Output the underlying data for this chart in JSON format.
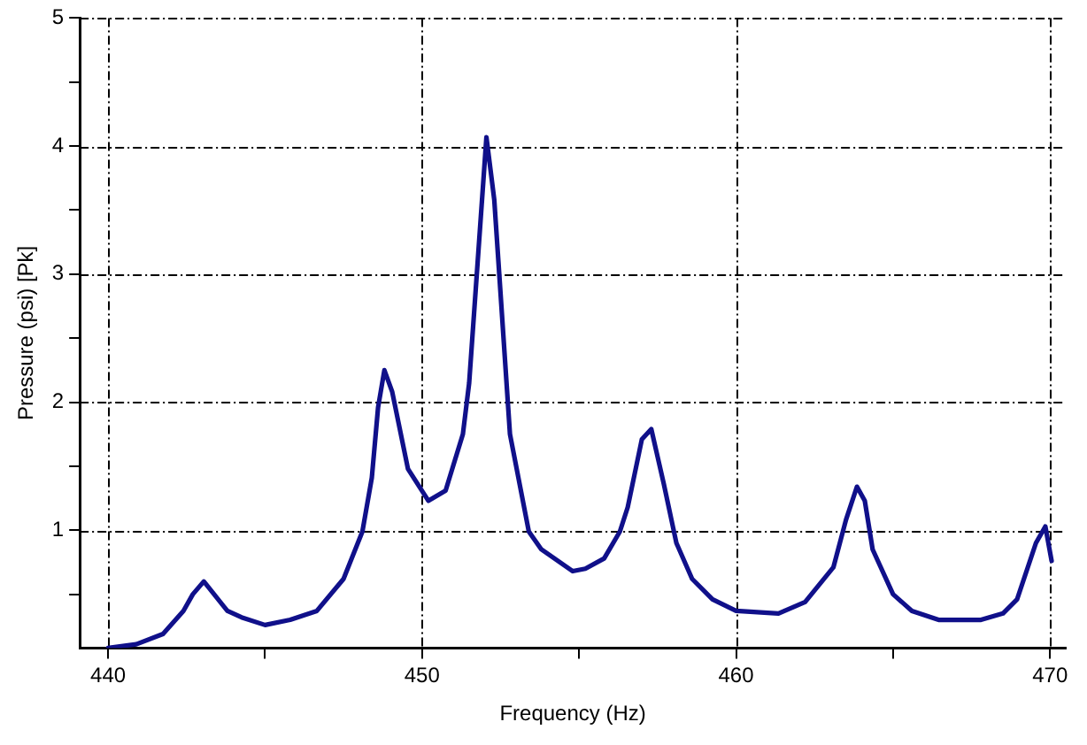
{
  "chart_data": {
    "type": "line",
    "xlabel": "Frequency (Hz)",
    "ylabel": "Pressure (psi) [Pk]",
    "xlim": [
      439.1,
      470.5
    ],
    "xticks": [
      440,
      {
        "value": 445,
        "label": null
      },
      450,
      {
        "value": 455,
        "label": null
      },
      460,
      {
        "value": 465,
        "label": null
      },
      470
    ],
    "ylim": [
      0.08,
      5
    ],
    "yticks": [
      {
        "value": 0.5,
        "label": null
      },
      1,
      {
        "value": 1.5,
        "label": null
      },
      2,
      {
        "value": 2.5,
        "label": null
      },
      3,
      {
        "value": 3.5,
        "label": null
      },
      4,
      {
        "value": 4.5,
        "label": null
      },
      5
    ],
    "grid": true,
    "marker": "none",
    "line_style": "solid",
    "series": [
      {
        "color": "#10108a",
        "x": [
          440,
          440.9,
          441.75,
          442.4,
          442.7,
          443.05,
          443.8,
          444.25,
          445.0,
          445.8,
          446.65,
          447.5,
          448.1,
          448.4,
          448.6,
          448.8,
          449.05,
          449.55,
          450.2,
          450.75,
          451.3,
          451.5,
          452.05,
          452.3,
          452.8,
          453.4,
          453.8,
          454.8,
          455.2,
          455.8,
          456.3,
          456.55,
          457.0,
          457.3,
          457.7,
          458.1,
          458.6,
          459.25,
          460.0,
          461.35,
          462.2,
          463.1,
          463.5,
          463.85,
          464.1,
          464.35,
          465.0,
          465.6,
          466.45,
          467.8,
          468.5,
          468.95,
          469.55,
          469.85,
          470.05
        ],
        "values": [
          0.08,
          0.11,
          0.19,
          0.37,
          0.5,
          0.6,
          0.37,
          0.32,
          0.26,
          0.3,
          0.37,
          0.62,
          0.99,
          1.41,
          1.96,
          2.25,
          2.08,
          1.48,
          1.23,
          1.31,
          1.75,
          2.15,
          4.07,
          3.58,
          1.75,
          0.99,
          0.85,
          0.68,
          0.7,
          0.78,
          0.99,
          1.18,
          1.71,
          1.79,
          1.36,
          0.9,
          0.62,
          0.46,
          0.37,
          0.35,
          0.44,
          0.71,
          1.08,
          1.34,
          1.23,
          0.85,
          0.5,
          0.37,
          0.3,
          0.3,
          0.35,
          0.46,
          0.9,
          1.03,
          0.76
        ]
      }
    ]
  }
}
